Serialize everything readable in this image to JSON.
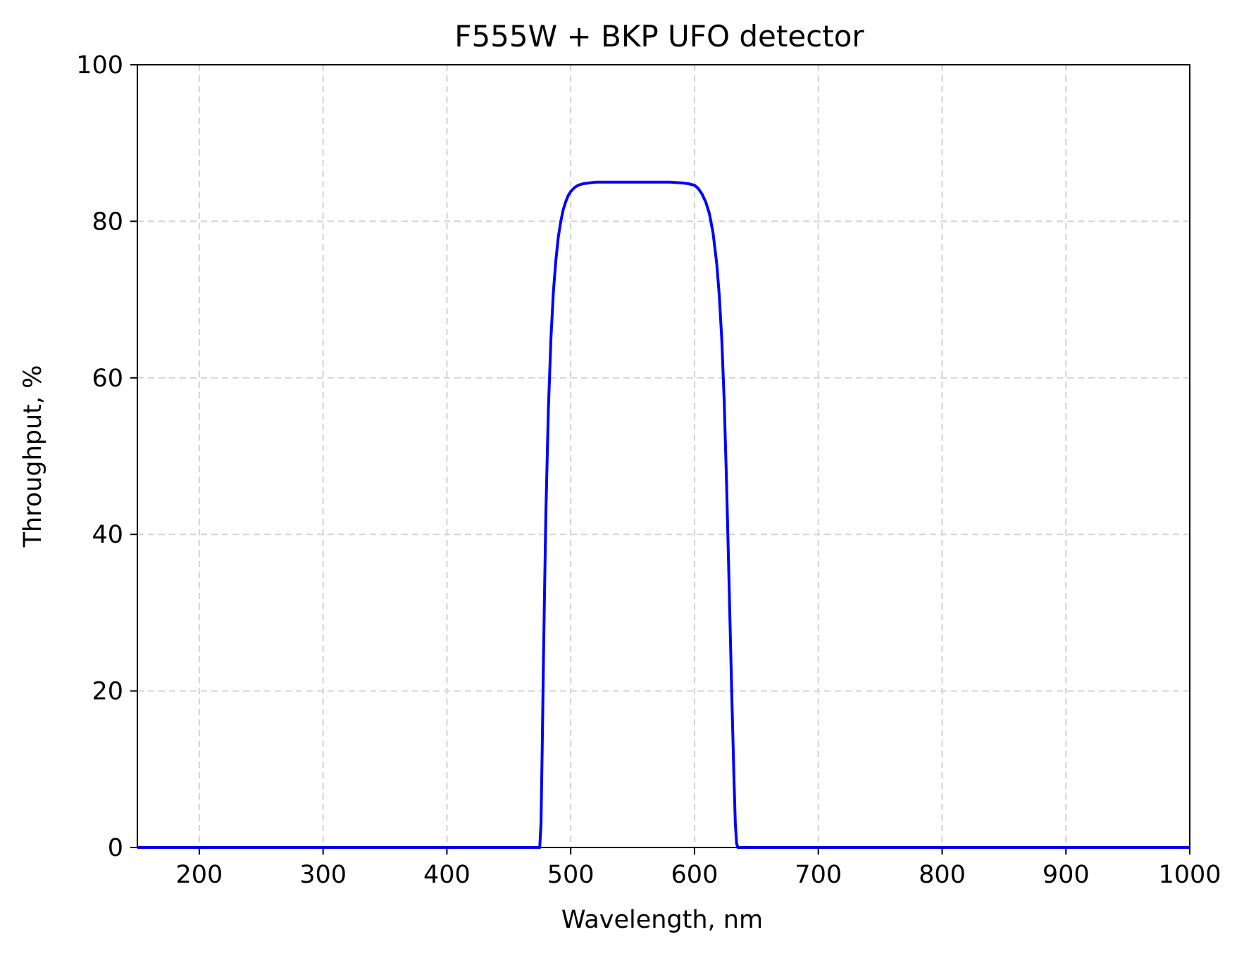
{
  "chart_data": {
    "type": "line",
    "title": "F555W + BKP UFO detector",
    "xlabel": "Wavelength, nm",
    "ylabel": "Throughput, %",
    "xlim": [
      150,
      1000
    ],
    "ylim": [
      0,
      100
    ],
    "xticks": [
      200,
      300,
      400,
      500,
      600,
      700,
      800,
      900,
      1000
    ],
    "yticks": [
      0,
      20,
      40,
      60,
      80,
      100
    ],
    "grid": true,
    "legend": "none",
    "colors": {
      "line": "#0000ff",
      "grid": "#d3d3d3",
      "axes": "#000000"
    },
    "series": [
      {
        "x": [
          150,
          200,
          300,
          400,
          470,
          475,
          476,
          477,
          478,
          479,
          480,
          482,
          484,
          486,
          488,
          490,
          492,
          494,
          496,
          498,
          500,
          503,
          506,
          510,
          515,
          520,
          530,
          540,
          550,
          560,
          570,
          580,
          590,
          595,
          600,
          603,
          606,
          609,
          612,
          615,
          618,
          620,
          622,
          624,
          626,
          628,
          630,
          632,
          633,
          634,
          635,
          640,
          700,
          800,
          900,
          1000
        ],
        "y": [
          0,
          0,
          0,
          0,
          0,
          0,
          3,
          13,
          24,
          34,
          43,
          56,
          65,
          71,
          75,
          78,
          80,
          81.5,
          82.5,
          83.3,
          83.8,
          84.3,
          84.6,
          84.8,
          84.9,
          85,
          85,
          85,
          85,
          85,
          85,
          85,
          84.9,
          84.8,
          84.6,
          84.2,
          83.5,
          82.5,
          81,
          78.5,
          74.5,
          70.5,
          65,
          57,
          46,
          33,
          20,
          8,
          3,
          0.5,
          0,
          0,
          0,
          0,
          0,
          0
        ]
      }
    ]
  }
}
